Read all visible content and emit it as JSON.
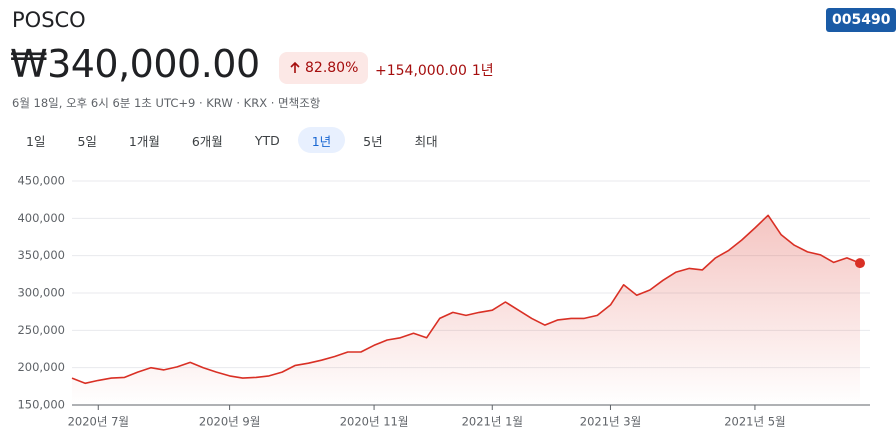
{
  "header": {
    "title": "POSCO",
    "price": "₩340,000.00",
    "change_percent": "82.80%",
    "change_value": "+154,000.00",
    "period": "1년",
    "info": "6월 18일, 오후 6시 6분 1초 UTC+9 · KRW · KRX · 면책조항",
    "ticker": "005490"
  },
  "tabs": [
    "1일",
    "5일",
    "1개월",
    "6개월",
    "YTD",
    "1년",
    "5년",
    "최대"
  ],
  "chart_data": {
    "type": "line",
    "color": "#d93025",
    "grid": true,
    "categories": [
      null,
      null,
      "2020년 7월",
      null,
      null,
      null,
      null,
      null,
      null,
      null,
      null,
      null,
      "2020년 9월",
      null,
      null,
      null,
      null,
      null,
      null,
      null,
      null,
      null,
      null,
      "2020년 11월",
      null,
      null,
      null,
      null,
      null,
      null,
      null,
      null,
      "2021년 1월",
      null,
      null,
      null,
      null,
      null,
      null,
      null,
      null,
      "2021년 3월",
      null,
      null,
      null,
      null,
      null,
      null,
      null,
      null,
      null,
      null,
      "2021년 5월",
      null,
      null,
      null,
      null,
      null,
      null,
      null,
      null
    ],
    "values": [
      186000,
      179000,
      183000,
      186000,
      187000,
      194000,
      200000,
      197000,
      201000,
      207000,
      200000,
      194000,
      189000,
      186000,
      187000,
      189000,
      194000,
      203000,
      206000,
      210000,
      215000,
      221000,
      221000,
      230000,
      237000,
      240000,
      246000,
      240000,
      266000,
      274000,
      270000,
      274000,
      277000,
      288000,
      277000,
      266000,
      257000,
      264000,
      266000,
      266000,
      270000,
      284000,
      311000,
      297000,
      304000,
      317000,
      328000,
      333000,
      331000,
      347000,
      357000,
      371000,
      387000,
      404000,
      378000,
      364000,
      355000,
      351000,
      341000,
      347000,
      340000
    ],
    "ylim": [
      150000,
      450000
    ],
    "yticks": [
      {
        "value": 150000,
        "label": "150,000"
      },
      {
        "value": 200000,
        "label": "200,000"
      },
      {
        "value": 250000,
        "label": "250,000"
      },
      {
        "value": 300000,
        "label": "300,000"
      },
      {
        "value": 350000,
        "label": "350,000"
      },
      {
        "value": 400000,
        "label": "400,000"
      },
      {
        "value": 450000,
        "label": "450,000"
      }
    ]
  }
}
